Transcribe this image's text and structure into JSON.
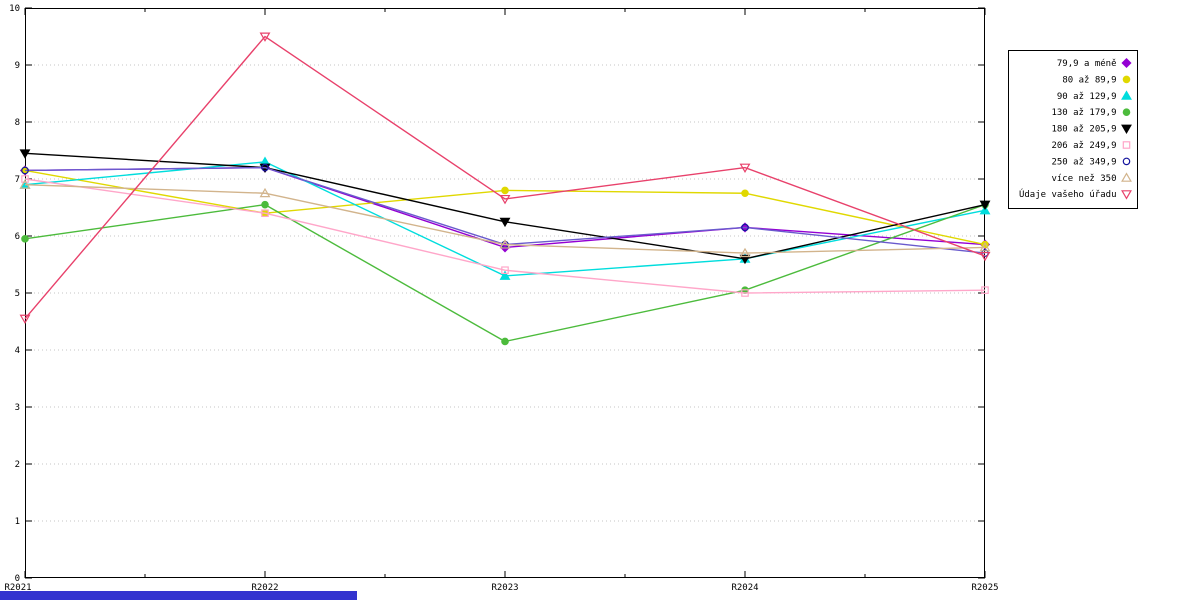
{
  "chart_data": {
    "type": "line",
    "title": "",
    "xlabel": "",
    "ylabel": "",
    "categories": [
      "R2021",
      "R2022",
      "R2023",
      "R2024",
      "R2025"
    ],
    "ylim": [
      0,
      10
    ],
    "y_tick_labels": [
      "0",
      "1",
      "2",
      "3",
      "4",
      "5",
      "6",
      "7",
      "8",
      "9",
      "10"
    ],
    "grid": "horizontal-dotted",
    "legend_position": "outside-top-right",
    "series": [
      {
        "name": "79,9 a méně",
        "color": "#9400d3",
        "marker": "diamond",
        "filled": true,
        "values": [
          7.15,
          7.2,
          5.8,
          6.15,
          5.85
        ]
      },
      {
        "name": "80 až 89,9",
        "color": "#e0d800",
        "marker": "circle",
        "filled": true,
        "values": [
          7.15,
          6.4,
          6.8,
          6.75,
          5.85
        ]
      },
      {
        "name": "90 až 129,9",
        "color": "#00dddd",
        "marker": "triangle-up",
        "filled": true,
        "values": [
          6.9,
          7.3,
          5.3,
          5.6,
          6.45
        ]
      },
      {
        "name": "130 až 179,9",
        "color": "#4cbb3c",
        "marker": "circle",
        "filled": true,
        "values": [
          5.95,
          6.55,
          4.15,
          5.05,
          6.55
        ]
      },
      {
        "name": "180 až 205,9",
        "color": "#000000",
        "marker": "triangle-down",
        "filled": true,
        "values": [
          7.45,
          7.2,
          6.25,
          5.6,
          6.55
        ]
      },
      {
        "name": "206 až 249,9",
        "color": "#ffa6c9",
        "marker": "square",
        "filled": false,
        "values": [
          7.0,
          6.4,
          5.4,
          5.0,
          5.05
        ]
      },
      {
        "name": "250 až 349,9",
        "color": "#6a5acd",
        "marker_color": "#16169e",
        "marker": "circle",
        "filled": false,
        "values": [
          7.15,
          7.2,
          5.85,
          6.15,
          5.7
        ]
      },
      {
        "name": "více než 350",
        "color": "#d2b48c",
        "marker": "triangle-up",
        "filled": false,
        "values": [
          6.9,
          6.75,
          5.85,
          5.7,
          5.8
        ]
      },
      {
        "name": "Údaje vašeho úřadu",
        "color": "#e8416b",
        "marker": "triangle-down",
        "filled": false,
        "values": [
          4.55,
          9.5,
          6.65,
          7.2,
          5.65
        ]
      }
    ]
  },
  "footer_bar": {
    "color": "#3434cf"
  }
}
